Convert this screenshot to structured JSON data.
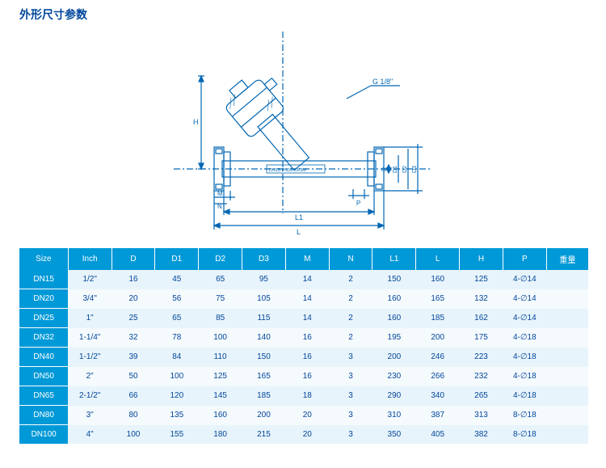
{
  "title": "外形尺寸参数",
  "diagram": {
    "port_thread": "G 1/8\"",
    "body_marking": "DN15 PN16 CF3M",
    "dims": [
      "H",
      "L",
      "L1",
      "M",
      "N",
      "P",
      "D",
      "D1",
      "D2",
      "D3"
    ],
    "stroke": "#0066b3",
    "hatch": "#00469b"
  },
  "headers": [
    "Size",
    "Inch",
    "D",
    "D1",
    "D2",
    "D3",
    "M",
    "N",
    "L1",
    "L",
    "H",
    "P",
    "重量"
  ],
  "rows": [
    {
      "size": "DN15",
      "inch": "1/2\"",
      "D": "16",
      "D1": "45",
      "D2": "65",
      "D3": "95",
      "M": "14",
      "N": "2",
      "L1": "150",
      "L": "160",
      "H": "125",
      "P": "4-∅14",
      "wt": ""
    },
    {
      "size": "DN20",
      "inch": "3/4\"",
      "D": "20",
      "D1": "56",
      "D2": "75",
      "D3": "105",
      "M": "14",
      "N": "2",
      "L1": "160",
      "L": "165",
      "H": "132",
      "P": "4-∅14",
      "wt": ""
    },
    {
      "size": "DN25",
      "inch": "1\"",
      "D": "25",
      "D1": "65",
      "D2": "85",
      "D3": "115",
      "M": "14",
      "N": "2",
      "L1": "160",
      "L": "185",
      "H": "162",
      "P": "4-∅14",
      "wt": ""
    },
    {
      "size": "DN32",
      "inch": "1-1/4\"",
      "D": "32",
      "D1": "78",
      "D2": "100",
      "D3": "140",
      "M": "16",
      "N": "2",
      "L1": "195",
      "L": "200",
      "H": "175",
      "P": "4-∅18",
      "wt": ""
    },
    {
      "size": "DN40",
      "inch": "1-1/2\"",
      "D": "39",
      "D1": "84",
      "D2": "110",
      "D3": "150",
      "M": "16",
      "N": "3",
      "L1": "200",
      "L": "246",
      "H": "223",
      "P": "4-∅18",
      "wt": ""
    },
    {
      "size": "DN50",
      "inch": "2\"",
      "D": "50",
      "D1": "100",
      "D2": "125",
      "D3": "165",
      "M": "16",
      "N": "3",
      "L1": "230",
      "L": "266",
      "H": "232",
      "P": "4-∅18",
      "wt": ""
    },
    {
      "size": "DN65",
      "inch": "2-1/2\"",
      "D": "66",
      "D1": "120",
      "D2": "145",
      "D3": "185",
      "M": "18",
      "N": "3",
      "L1": "290",
      "L": "340",
      "H": "265",
      "P": "4-∅18",
      "wt": ""
    },
    {
      "size": "DN80",
      "inch": "3\"",
      "D": "80",
      "D1": "135",
      "D2": "160",
      "D3": "200",
      "M": "20",
      "N": "3",
      "L1": "310",
      "L": "387",
      "H": "313",
      "P": "8-∅18",
      "wt": ""
    },
    {
      "size": "DN100",
      "inch": "4\"",
      "D": "100",
      "D1": "155",
      "D2": "180",
      "D3": "215",
      "M": "20",
      "N": "3",
      "L1": "350",
      "L": "405",
      "H": "382",
      "P": "8-∅18",
      "wt": ""
    }
  ],
  "palette": {
    "header_bg": "#0099d8",
    "header_fg": "#ffffff",
    "cell_fg": "#00469b",
    "row_odd": "#e8f4fb",
    "row_even": "#f5fafd"
  }
}
